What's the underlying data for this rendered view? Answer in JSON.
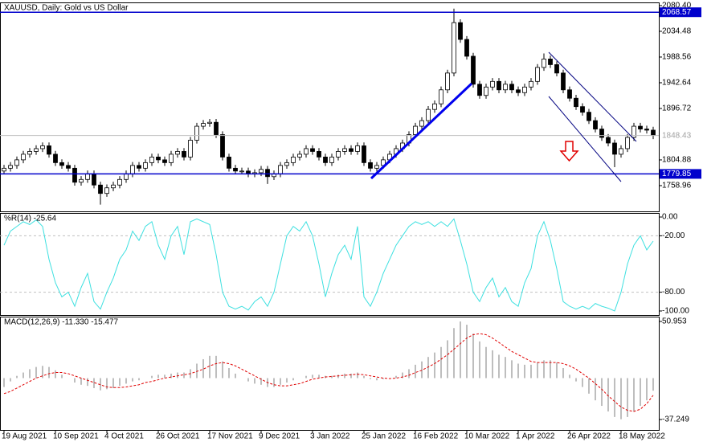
{
  "chart_data": [
    {
      "type": "candlestick",
      "title": "XAUUSD, Daily:  Gold vs US Dollar",
      "categories": [
        "19 Aug 2021",
        null,
        null,
        null,
        null,
        null,
        null,
        null,
        "10 Sep 2021",
        null,
        null,
        null,
        null,
        null,
        null,
        null,
        "4 Oct 2021",
        null,
        null,
        null,
        null,
        null,
        null,
        null,
        "26 Oct 2021",
        null,
        null,
        null,
        null,
        null,
        null,
        null,
        "17 Nov 2021",
        null,
        null,
        null,
        null,
        null,
        null,
        null,
        "9 Dec 2021",
        null,
        null,
        null,
        null,
        null,
        null,
        null,
        "3 Jan 2022",
        null,
        null,
        null,
        null,
        null,
        null,
        null,
        "25 Jan 2022",
        null,
        null,
        null,
        null,
        null,
        null,
        null,
        "16 Feb 2022",
        null,
        null,
        null,
        null,
        null,
        null,
        null,
        "10 Mar 2022",
        null,
        null,
        null,
        null,
        null,
        null,
        null,
        "1 Apr 2022",
        null,
        null,
        null,
        null,
        null,
        null,
        null,
        "26 Apr 2022",
        null,
        null,
        null,
        null,
        null,
        null,
        null,
        "18 May 2022",
        null,
        null,
        null,
        null,
        null
      ],
      "open": [
        1785,
        1790,
        1795,
        1805,
        1815,
        1820,
        1825,
        1830,
        1815,
        1800,
        1795,
        1790,
        1765,
        1770,
        1780,
        1760,
        1745,
        1755,
        1760,
        1770,
        1780,
        1795,
        1790,
        1800,
        1810,
        1805,
        1800,
        1815,
        1820,
        1810,
        1840,
        1865,
        1870,
        1872,
        1850,
        1810,
        1790,
        1785,
        1785,
        1780,
        1782,
        1788,
        1775,
        1780,
        1795,
        1800,
        1810,
        1815,
        1825,
        1820,
        1810,
        1800,
        1810,
        1820,
        1825,
        1820,
        1830,
        1800,
        1790,
        1795,
        1805,
        1815,
        1825,
        1835,
        1850,
        1865,
        1875,
        1895,
        1905,
        1930,
        1960,
        2050,
        2020,
        1990,
        1940,
        1920,
        1935,
        1945,
        1930,
        1940,
        1930,
        1925,
        1935,
        1945,
        1970,
        1985,
        1975,
        1960,
        1930,
        1915,
        1900,
        1890,
        1875,
        1860,
        1845,
        1835,
        1815,
        1825,
        1845,
        1865,
        1860,
        1858
      ],
      "high": [
        1796,
        1801,
        1811,
        1821,
        1826,
        1831,
        1836,
        1836,
        1821,
        1806,
        1801,
        1796,
        1776,
        1786,
        1786,
        1766,
        1761,
        1766,
        1776,
        1786,
        1801,
        1801,
        1806,
        1816,
        1816,
        1811,
        1821,
        1826,
        1826,
        1846,
        1871,
        1876,
        1878,
        1878,
        1856,
        1816,
        1796,
        1791,
        1791,
        1788,
        1794,
        1794,
        1786,
        1801,
        1806,
        1816,
        1821,
        1831,
        1831,
        1826,
        1816,
        1816,
        1826,
        1831,
        1831,
        1836,
        1836,
        1806,
        1801,
        1811,
        1821,
        1831,
        1841,
        1856,
        1871,
        1881,
        1901,
        1911,
        1936,
        1966,
        2075,
        2056,
        2026,
        1996,
        1946,
        1941,
        1951,
        1951,
        1946,
        1946,
        1936,
        1941,
        1951,
        1976,
        1995,
        1991,
        1981,
        1966,
        1936,
        1921,
        1906,
        1896,
        1881,
        1866,
        1851,
        1841,
        1831,
        1851,
        1871,
        1871,
        1866,
        1864
      ],
      "low": [
        1779,
        1784,
        1789,
        1799,
        1809,
        1814,
        1819,
        1809,
        1794,
        1789,
        1784,
        1759,
        1759,
        1764,
        1754,
        1725,
        1739,
        1749,
        1754,
        1764,
        1774,
        1784,
        1784,
        1794,
        1799,
        1794,
        1794,
        1809,
        1804,
        1804,
        1834,
        1859,
        1864,
        1844,
        1804,
        1784,
        1779,
        1779,
        1774,
        1774,
        1776,
        1762,
        1769,
        1774,
        1789,
        1794,
        1804,
        1809,
        1814,
        1804,
        1794,
        1794,
        1804,
        1814,
        1814,
        1814,
        1794,
        1784,
        1784,
        1789,
        1799,
        1809,
        1819,
        1829,
        1844,
        1859,
        1869,
        1889,
        1899,
        1924,
        1954,
        2014,
        1984,
        1934,
        1914,
        1914,
        1929,
        1924,
        1924,
        1924,
        1919,
        1919,
        1929,
        1939,
        1964,
        1969,
        1954,
        1924,
        1909,
        1894,
        1884,
        1869,
        1854,
        1839,
        1829,
        1792,
        1809,
        1819,
        1839,
        1854,
        1852,
        1842
      ],
      "close": [
        1790,
        1795,
        1805,
        1815,
        1820,
        1825,
        1830,
        1815,
        1800,
        1795,
        1790,
        1765,
        1770,
        1780,
        1760,
        1745,
        1755,
        1760,
        1770,
        1780,
        1795,
        1790,
        1800,
        1810,
        1805,
        1800,
        1815,
        1820,
        1810,
        1840,
        1865,
        1870,
        1872,
        1850,
        1810,
        1790,
        1785,
        1785,
        1780,
        1782,
        1788,
        1775,
        1780,
        1795,
        1800,
        1810,
        1815,
        1825,
        1820,
        1810,
        1800,
        1810,
        1820,
        1825,
        1820,
        1830,
        1800,
        1790,
        1795,
        1805,
        1815,
        1825,
        1835,
        1850,
        1865,
        1875,
        1895,
        1905,
        1930,
        1960,
        2050,
        2020,
        1990,
        1940,
        1920,
        1935,
        1945,
        1930,
        1940,
        1930,
        1925,
        1935,
        1945,
        1970,
        1985,
        1975,
        1960,
        1930,
        1915,
        1900,
        1890,
        1875,
        1860,
        1845,
        1835,
        1815,
        1825,
        1845,
        1865,
        1860,
        1858,
        1848.43
      ],
      "up_color": "#ffffff",
      "down_color": "#000000",
      "ylim": [
        1713.0,
        2086.1
      ],
      "yticks": [
        {
          "value": 2080.4,
          "label": "2080.40"
        },
        2034.48,
        1988.56,
        1942.64,
        1896.72,
        1804.88,
        1758.96
      ],
      "hlines": [
        2068.57,
        1779.85
      ],
      "hline_color": "#0000cc",
      "current_price": 1848.43
    },
    {
      "type": "line",
      "title": "%R(14) -25.64",
      "color": "#3ee0e0",
      "values": [
        -30,
        -15,
        -10,
        -5,
        -8,
        -3,
        -10,
        -45,
        -70,
        -85,
        -80,
        -95,
        -75,
        -60,
        -90,
        -98,
        -80,
        -65,
        -45,
        -35,
        -15,
        -25,
        -10,
        -5,
        -30,
        -45,
        -20,
        -10,
        -40,
        -5,
        -2,
        -5,
        -8,
        -40,
        -80,
        -95,
        -98,
        -95,
        -99,
        -90,
        -85,
        -95,
        -80,
        -50,
        -20,
        -10,
        -15,
        -5,
        -20,
        -50,
        -85,
        -60,
        -40,
        -30,
        -45,
        -10,
        -85,
        -95,
        -80,
        -60,
        -45,
        -30,
        -20,
        -10,
        -5,
        -8,
        -5,
        -10,
        -5,
        -10,
        -2,
        -25,
        -50,
        -80,
        -90,
        -75,
        -65,
        -85,
        -75,
        -90,
        -95,
        -70,
        -55,
        -20,
        -5,
        -25,
        -55,
        -90,
        -95,
        -98,
        -95,
        -98,
        -92,
        -95,
        -97,
        -100,
        -80,
        -50,
        -30,
        -20,
        -35,
        -25.64
      ],
      "ylim": [
        -104.3,
        4.3
      ],
      "yticks": [
        {
          "value": 0,
          "label": "0.00"
        },
        {
          "value": -20,
          "label": "-20.00"
        },
        {
          "value": -80,
          "label": "-80.00"
        },
        {
          "value": -100,
          "label": "-100.00"
        }
      ],
      "levels": [
        -20,
        -80
      ]
    },
    {
      "type": "macd",
      "title": "MACD(12,26,9) -11.330 -15.477",
      "histogram": {
        "color": "#a8a8a8",
        "values": [
          -8,
          -3,
          2,
          5,
          8,
          10,
          11,
          10,
          7,
          3,
          0,
          -4,
          -6,
          -7,
          -9,
          -11,
          -10,
          -9,
          -7,
          -5,
          -3,
          -2,
          0,
          2,
          3,
          3,
          4,
          5,
          5,
          8,
          13,
          17,
          20,
          20,
          15,
          9,
          4,
          0,
          -3,
          -5,
          -6,
          -8,
          -8,
          -6,
          -4,
          -2,
          0,
          2,
          3,
          3,
          2,
          2,
          3,
          4,
          4,
          5,
          2,
          -1,
          -2,
          -1,
          0,
          2,
          5,
          8,
          12,
          15,
          19,
          23,
          28,
          34,
          45,
          50.953,
          48,
          40,
          33,
          28,
          25,
          21,
          19,
          16,
          13,
          12,
          12,
          14,
          16,
          16,
          14,
          9,
          3,
          -3,
          -8,
          -14,
          -20,
          -25,
          -30,
          -35,
          -37,
          -35,
          -30,
          -25,
          -20,
          -11.33
        ]
      },
      "signal": {
        "color": "#e00000",
        "values": [
          -14,
          -12,
          -9,
          -6,
          -3,
          0,
          2,
          4,
          5,
          5,
          4,
          2,
          0,
          -2,
          -4,
          -6,
          -8,
          -8.5,
          -8.5,
          -8,
          -7,
          -6,
          -4,
          -3,
          -1.5,
          0,
          1,
          2,
          3,
          4,
          6,
          8,
          11,
          13,
          14,
          13,
          11,
          8,
          5,
          2,
          -1,
          -4,
          -6,
          -7,
          -7,
          -6,
          -5,
          -3,
          -1,
          0,
          1,
          1.5,
          2,
          2.5,
          3,
          3.5,
          3,
          2,
          1,
          0,
          -0.5,
          0,
          1,
          2.5,
          5,
          7,
          10,
          13,
          17,
          21,
          26,
          31,
          36,
          39,
          40,
          39,
          36,
          32,
          28,
          24,
          21,
          18,
          15,
          14,
          14,
          14,
          14,
          13,
          11,
          8,
          4,
          0,
          -5,
          -10,
          -16,
          -21,
          -26,
          -29,
          -30,
          -28,
          -23,
          -15.477
        ]
      },
      "ylim": [
        -46.65,
        55.29
      ],
      "yticks": [
        50.953,
        -37.249
      ]
    }
  ]
}
